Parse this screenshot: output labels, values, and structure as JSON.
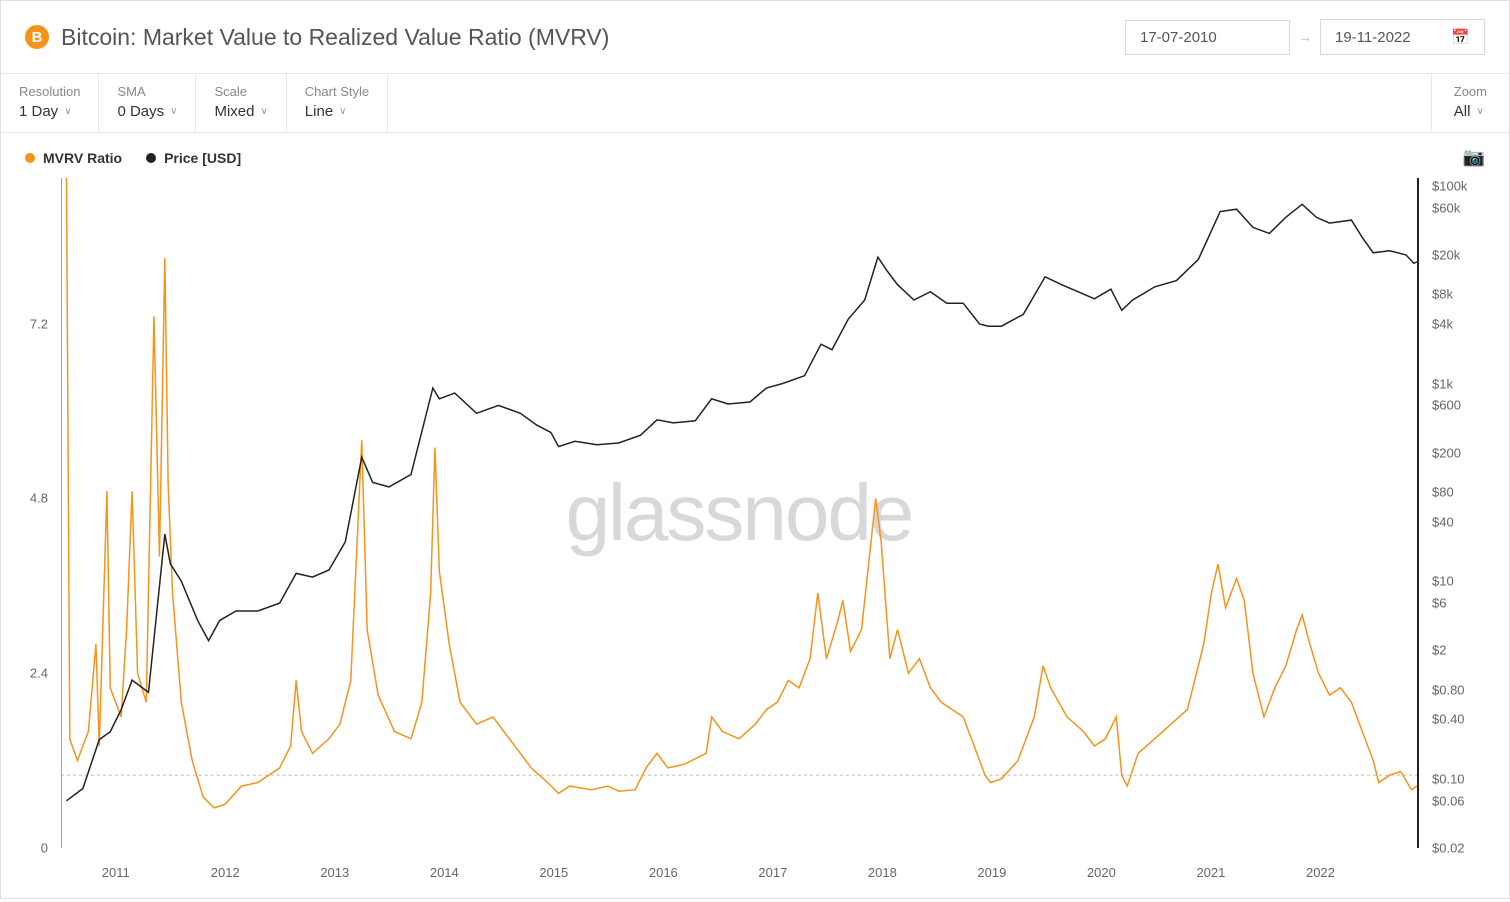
{
  "header": {
    "icon_letter": "B",
    "title": "Bitcoin: Market Value to Realized Value Ratio (MVRV)",
    "date_from": "17-07-2010",
    "date_to": "19-11-2022"
  },
  "controls": {
    "resolution": {
      "label": "Resolution",
      "value": "1 Day"
    },
    "sma": {
      "label": "SMA",
      "value": "0 Days"
    },
    "scale": {
      "label": "Scale",
      "value": "Mixed"
    },
    "chart_style": {
      "label": "Chart Style",
      "value": "Line"
    },
    "zoom": {
      "label": "Zoom",
      "value": "All"
    }
  },
  "legend": {
    "series1": {
      "label": "MVRV Ratio",
      "color": "#f7931a"
    },
    "series2": {
      "label": "Price [USD]",
      "color": "#222222"
    }
  },
  "watermark": "glassnode",
  "chart": {
    "type": "line",
    "background_color": "#ffffff",
    "x_axis": {
      "type": "time",
      "start_year": 2010.5,
      "end_year": 2022.9,
      "ticks": [
        2011,
        2012,
        2013,
        2014,
        2015,
        2016,
        2017,
        2018,
        2019,
        2020,
        2021,
        2022
      ]
    },
    "y_left": {
      "type": "linear",
      "min": 0,
      "max": 9.2,
      "ticks": [
        0,
        2.4,
        4.8,
        7.2
      ],
      "color": "#f7931a"
    },
    "y_right": {
      "type": "log",
      "min": 0.02,
      "max": 120000,
      "ticks": [
        0.02,
        0.06,
        0.1,
        0.4,
        0.8,
        2,
        6,
        10,
        40,
        80,
        200,
        600,
        1000,
        4000,
        8000,
        20000,
        60000,
        100000
      ],
      "tick_labels": [
        "$0.02",
        "$0.06",
        "$0.10",
        "$0.40",
        "$0.80",
        "$2",
        "$6",
        "$10",
        "$40",
        "$80",
        "$200",
        "$600",
        "$1k",
        "$4k",
        "$8k",
        "$20k",
        "$60k",
        "$100k"
      ],
      "color": "#222222"
    },
    "reference_line": {
      "y_left_value": 1.0,
      "style": "dashed",
      "color": "#bbbbbb"
    },
    "series": {
      "mvrv": {
        "axis": "left",
        "color": "#f7931a",
        "stroke_width": 1.5,
        "data": [
          [
            2010.55,
            9.2
          ],
          [
            2010.58,
            1.5
          ],
          [
            2010.65,
            1.2
          ],
          [
            2010.75,
            1.6
          ],
          [
            2010.82,
            2.8
          ],
          [
            2010.85,
            1.4
          ],
          [
            2010.92,
            4.9
          ],
          [
            2010.95,
            2.2
          ],
          [
            2011.05,
            1.8
          ],
          [
            2011.1,
            3.0
          ],
          [
            2011.15,
            4.9
          ],
          [
            2011.2,
            2.4
          ],
          [
            2011.28,
            2.0
          ],
          [
            2011.35,
            7.3
          ],
          [
            2011.4,
            4.0
          ],
          [
            2011.45,
            8.1
          ],
          [
            2011.48,
            5.0
          ],
          [
            2011.52,
            3.5
          ],
          [
            2011.6,
            2.0
          ],
          [
            2011.7,
            1.2
          ],
          [
            2011.8,
            0.7
          ],
          [
            2011.9,
            0.55
          ],
          [
            2012.0,
            0.6
          ],
          [
            2012.15,
            0.85
          ],
          [
            2012.3,
            0.9
          ],
          [
            2012.5,
            1.1
          ],
          [
            2012.6,
            1.4
          ],
          [
            2012.65,
            2.3
          ],
          [
            2012.7,
            1.6
          ],
          [
            2012.8,
            1.3
          ],
          [
            2012.95,
            1.5
          ],
          [
            2013.05,
            1.7
          ],
          [
            2013.15,
            2.3
          ],
          [
            2013.25,
            5.6
          ],
          [
            2013.3,
            3.0
          ],
          [
            2013.4,
            2.1
          ],
          [
            2013.55,
            1.6
          ],
          [
            2013.7,
            1.5
          ],
          [
            2013.8,
            2.0
          ],
          [
            2013.88,
            3.5
          ],
          [
            2013.92,
            5.5
          ],
          [
            2013.96,
            3.8
          ],
          [
            2014.05,
            2.8
          ],
          [
            2014.15,
            2.0
          ],
          [
            2014.3,
            1.7
          ],
          [
            2014.45,
            1.8
          ],
          [
            2014.55,
            1.6
          ],
          [
            2014.7,
            1.3
          ],
          [
            2014.8,
            1.1
          ],
          [
            2014.95,
            0.9
          ],
          [
            2015.05,
            0.75
          ],
          [
            2015.15,
            0.85
          ],
          [
            2015.35,
            0.8
          ],
          [
            2015.5,
            0.85
          ],
          [
            2015.6,
            0.78
          ],
          [
            2015.75,
            0.8
          ],
          [
            2015.85,
            1.1
          ],
          [
            2015.95,
            1.3
          ],
          [
            2016.05,
            1.1
          ],
          [
            2016.2,
            1.15
          ],
          [
            2016.4,
            1.3
          ],
          [
            2016.45,
            1.8
          ],
          [
            2016.55,
            1.6
          ],
          [
            2016.7,
            1.5
          ],
          [
            2016.85,
            1.7
          ],
          [
            2016.95,
            1.9
          ],
          [
            2017.05,
            2.0
          ],
          [
            2017.15,
            2.3
          ],
          [
            2017.25,
            2.2
          ],
          [
            2017.35,
            2.6
          ],
          [
            2017.42,
            3.5
          ],
          [
            2017.5,
            2.6
          ],
          [
            2017.6,
            3.1
          ],
          [
            2017.65,
            3.4
          ],
          [
            2017.72,
            2.7
          ],
          [
            2017.82,
            3.0
          ],
          [
            2017.95,
            4.8
          ],
          [
            2018.0,
            4.2
          ],
          [
            2018.08,
            2.6
          ],
          [
            2018.15,
            3.0
          ],
          [
            2018.25,
            2.4
          ],
          [
            2018.35,
            2.6
          ],
          [
            2018.45,
            2.2
          ],
          [
            2018.55,
            2.0
          ],
          [
            2018.65,
            1.9
          ],
          [
            2018.75,
            1.8
          ],
          [
            2018.85,
            1.4
          ],
          [
            2018.95,
            1.0
          ],
          [
            2019.0,
            0.9
          ],
          [
            2019.1,
            0.95
          ],
          [
            2019.25,
            1.2
          ],
          [
            2019.4,
            1.8
          ],
          [
            2019.48,
            2.5
          ],
          [
            2019.55,
            2.2
          ],
          [
            2019.7,
            1.8
          ],
          [
            2019.85,
            1.6
          ],
          [
            2019.95,
            1.4
          ],
          [
            2020.05,
            1.5
          ],
          [
            2020.15,
            1.8
          ],
          [
            2020.2,
            1.0
          ],
          [
            2020.25,
            0.85
          ],
          [
            2020.35,
            1.3
          ],
          [
            2020.5,
            1.5
          ],
          [
            2020.65,
            1.7
          ],
          [
            2020.8,
            1.9
          ],
          [
            2020.95,
            2.8
          ],
          [
            2021.02,
            3.5
          ],
          [
            2021.08,
            3.9
          ],
          [
            2021.15,
            3.3
          ],
          [
            2021.25,
            3.7
          ],
          [
            2021.32,
            3.4
          ],
          [
            2021.4,
            2.4
          ],
          [
            2021.5,
            1.8
          ],
          [
            2021.6,
            2.2
          ],
          [
            2021.7,
            2.5
          ],
          [
            2021.8,
            3.0
          ],
          [
            2021.85,
            3.2
          ],
          [
            2021.92,
            2.8
          ],
          [
            2022.0,
            2.4
          ],
          [
            2022.1,
            2.1
          ],
          [
            2022.2,
            2.2
          ],
          [
            2022.3,
            2.0
          ],
          [
            2022.4,
            1.6
          ],
          [
            2022.5,
            1.2
          ],
          [
            2022.55,
            0.9
          ],
          [
            2022.65,
            1.0
          ],
          [
            2022.75,
            1.05
          ],
          [
            2022.85,
            0.8
          ],
          [
            2022.9,
            0.85
          ]
        ]
      },
      "price": {
        "axis": "right",
        "color": "#222222",
        "stroke_width": 1.5,
        "data": [
          [
            2010.55,
            0.06
          ],
          [
            2010.7,
            0.08
          ],
          [
            2010.85,
            0.25
          ],
          [
            2010.95,
            0.3
          ],
          [
            2011.05,
            0.5
          ],
          [
            2011.15,
            1.0
          ],
          [
            2011.3,
            0.75
          ],
          [
            2011.45,
            30
          ],
          [
            2011.5,
            15
          ],
          [
            2011.6,
            10
          ],
          [
            2011.75,
            4
          ],
          [
            2011.85,
            2.5
          ],
          [
            2011.95,
            4
          ],
          [
            2012.1,
            5
          ],
          [
            2012.3,
            5
          ],
          [
            2012.5,
            6
          ],
          [
            2012.65,
            12
          ],
          [
            2012.8,
            11
          ],
          [
            2012.95,
            13
          ],
          [
            2013.1,
            25
          ],
          [
            2013.25,
            180
          ],
          [
            2013.35,
            100
          ],
          [
            2013.5,
            90
          ],
          [
            2013.7,
            120
          ],
          [
            2013.9,
            900
          ],
          [
            2013.96,
            700
          ],
          [
            2014.1,
            800
          ],
          [
            2014.3,
            500
          ],
          [
            2014.5,
            600
          ],
          [
            2014.7,
            500
          ],
          [
            2014.85,
            380
          ],
          [
            2014.98,
            320
          ],
          [
            2015.05,
            230
          ],
          [
            2015.2,
            260
          ],
          [
            2015.4,
            240
          ],
          [
            2015.6,
            250
          ],
          [
            2015.8,
            300
          ],
          [
            2015.95,
            430
          ],
          [
            2016.1,
            400
          ],
          [
            2016.3,
            420
          ],
          [
            2016.45,
            700
          ],
          [
            2016.6,
            620
          ],
          [
            2016.8,
            650
          ],
          [
            2016.95,
            900
          ],
          [
            2017.1,
            1000
          ],
          [
            2017.3,
            1200
          ],
          [
            2017.45,
            2500
          ],
          [
            2017.55,
            2200
          ],
          [
            2017.7,
            4500
          ],
          [
            2017.85,
            7000
          ],
          [
            2017.97,
            19000
          ],
          [
            2018.05,
            14000
          ],
          [
            2018.15,
            10000
          ],
          [
            2018.3,
            7000
          ],
          [
            2018.45,
            8500
          ],
          [
            2018.6,
            6500
          ],
          [
            2018.75,
            6500
          ],
          [
            2018.9,
            4000
          ],
          [
            2018.98,
            3800
          ],
          [
            2019.1,
            3800
          ],
          [
            2019.3,
            5000
          ],
          [
            2019.5,
            12000
          ],
          [
            2019.65,
            10000
          ],
          [
            2019.8,
            8500
          ],
          [
            2019.95,
            7200
          ],
          [
            2020.1,
            9000
          ],
          [
            2020.2,
            5500
          ],
          [
            2020.3,
            7000
          ],
          [
            2020.5,
            9500
          ],
          [
            2020.7,
            11000
          ],
          [
            2020.9,
            18000
          ],
          [
            2020.98,
            28000
          ],
          [
            2021.1,
            55000
          ],
          [
            2021.25,
            58000
          ],
          [
            2021.4,
            38000
          ],
          [
            2021.55,
            33000
          ],
          [
            2021.7,
            48000
          ],
          [
            2021.85,
            65000
          ],
          [
            2021.98,
            48000
          ],
          [
            2022.1,
            42000
          ],
          [
            2022.3,
            45000
          ],
          [
            2022.4,
            30000
          ],
          [
            2022.5,
            21000
          ],
          [
            2022.65,
            22000
          ],
          [
            2022.8,
            20000
          ],
          [
            2022.87,
            16500
          ],
          [
            2022.9,
            17000
          ]
        ]
      }
    }
  }
}
